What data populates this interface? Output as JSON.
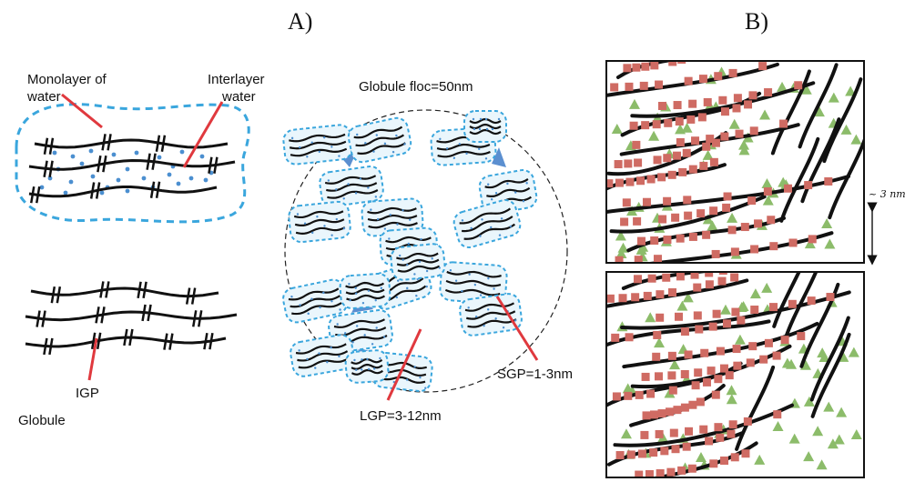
{
  "panels": {
    "a": "A)",
    "b": "B)"
  },
  "labels": {
    "monolayer": [
      "Monolayer of",
      "water"
    ],
    "interlayer": [
      "Interlayer",
      "water"
    ],
    "floc": "Globule floc=50nm",
    "igp": "IGP",
    "globule": "Globule",
    "lgp": "LGP=3-12nm",
    "sgp": "SGP=1-3nm",
    "scale": "~ 3 nm"
  },
  "colors": {
    "line": "#111111",
    "pointer": "#e0393e",
    "water_dash": "#3aa6dd",
    "water_dot": "#4b8fd0",
    "pore": "#5b8fd0",
    "square": "#cf6b63",
    "triangle": "#8cbc6a"
  }
}
